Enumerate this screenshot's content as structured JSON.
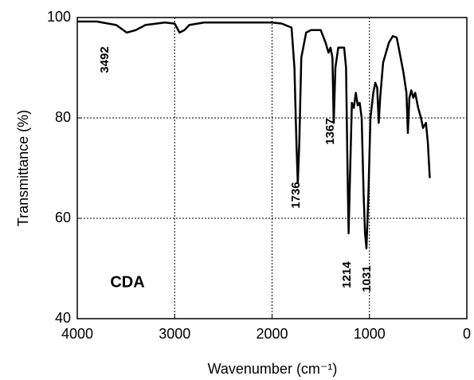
{
  "chart_data": {
    "type": "line",
    "x_label": "Wavenumber (cm⁻¹)",
    "y_label": "Transmittance (%)",
    "annotations": [
      "3492",
      "1736",
      "1367",
      "1214",
      "1031",
      "CDA"
    ],
    "x": [
      4000,
      3800,
      3600,
      3492,
      3400,
      3300,
      3100,
      3000,
      2950,
      2900,
      2850,
      2700,
      2000,
      1900,
      1800,
      1770,
      1750,
      1736,
      1720,
      1700,
      1650,
      1600,
      1500,
      1450,
      1420,
      1400,
      1380,
      1367,
      1350,
      1320,
      1260,
      1240,
      1225,
      1214,
      1200,
      1180,
      1160,
      1140,
      1120,
      1100,
      1080,
      1060,
      1045,
      1031,
      1010,
      990,
      960,
      940,
      920,
      905,
      890,
      860,
      800,
      760,
      720,
      680,
      650,
      620,
      605,
      590,
      570,
      550,
      530,
      500,
      470,
      450,
      420,
      400,
      380
    ],
    "values": [
      99.2,
      99.2,
      98.5,
      97,
      97.5,
      98.5,
      99,
      98.8,
      97,
      97.5,
      98.5,
      99,
      99,
      98.8,
      98,
      90,
      75,
      67,
      75,
      92,
      97,
      97.5,
      97.5,
      95,
      93,
      94,
      92,
      79,
      90,
      94,
      94,
      90,
      70,
      57,
      68,
      83,
      82,
      85,
      82.5,
      83,
      80,
      65,
      57,
      54,
      65,
      80,
      85,
      87,
      86,
      79,
      84,
      91,
      95,
      96.3,
      96,
      92,
      89,
      85,
      77,
      84,
      85.5,
      84,
      85,
      82,
      80,
      78,
      79,
      75,
      68
    ],
    "color": "#000000",
    "xlim": [
      4000,
      0
    ],
    "xticks": [
      4000,
      3000,
      2000,
      1000,
      0
    ],
    "ylim": [
      40,
      100
    ],
    "yticks": [
      40,
      60,
      80,
      100
    ],
    "grid": true
  }
}
